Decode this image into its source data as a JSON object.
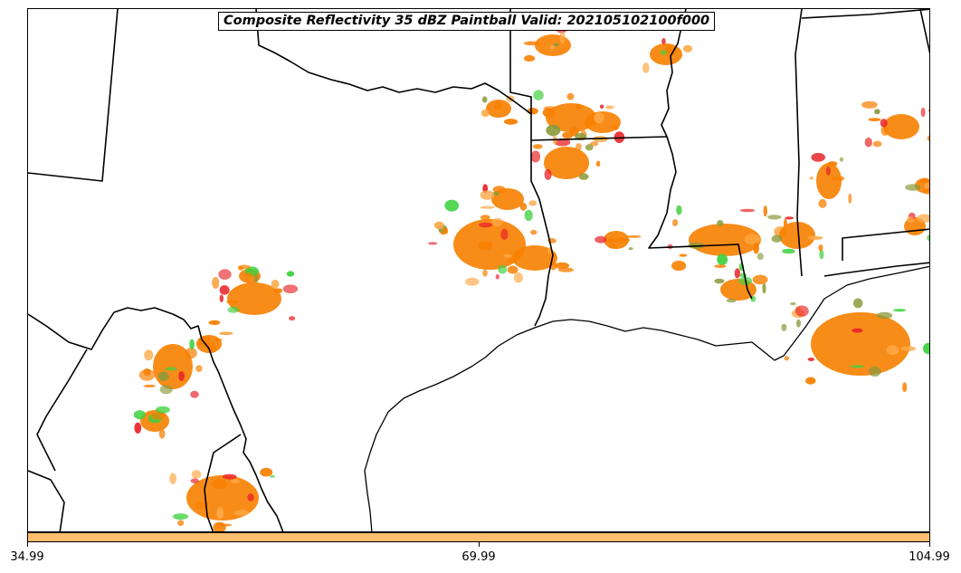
{
  "title": "Composite Reflectivity 35 dBZ Paintball Valid: 202105102100f000",
  "colorbar": {
    "color": "#fdbf6f",
    "ticks": [
      "34.99",
      "69.99",
      "104.99"
    ]
  },
  "colors": {
    "orange": "#f77f00",
    "light_orange": "#fdaa4a",
    "red": "#e8262a",
    "green": "#3fd13f",
    "olive": "#8c9a3a",
    "boundary": "#000000"
  }
}
